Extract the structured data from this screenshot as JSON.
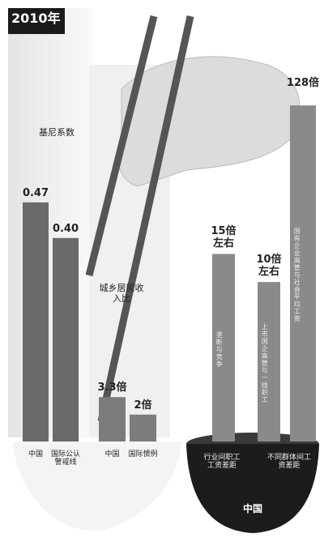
{
  "header": {
    "title": "2010年"
  },
  "chart_data": [
    {
      "type": "bar",
      "title": "基尼系数",
      "categories": [
        "中国",
        "国际公认警戒线"
      ],
      "values": [
        0.47,
        0.4
      ],
      "value_labels": [
        "0.47",
        "0.40"
      ],
      "color": "#6a6a6a",
      "ylim": [
        0,
        0.5
      ]
    },
    {
      "type": "bar",
      "title": "城乡居民收入比",
      "categories": [
        "中国",
        "国际惯例"
      ],
      "values": [
        3.3,
        2
      ],
      "value_labels": [
        "3.3倍",
        "2倍"
      ],
      "color": "#7c7c7c",
      "ylim": [
        0,
        5
      ]
    },
    {
      "type": "bar",
      "categories": [
        "垄断与竞争",
        "上市国企高管与一线职工",
        "国有企业高管与社会平均工资"
      ],
      "values": [
        15,
        10,
        128
      ],
      "value_labels": [
        "15倍左右",
        "10倍左右",
        "128倍"
      ],
      "color": "#8a8a8a",
      "log_scale": true,
      "ylim": [
        1,
        200
      ],
      "group_labels": [
        "行业间职工工资差距",
        "不同群体间工资差距"
      ],
      "region": "中国"
    }
  ]
}
